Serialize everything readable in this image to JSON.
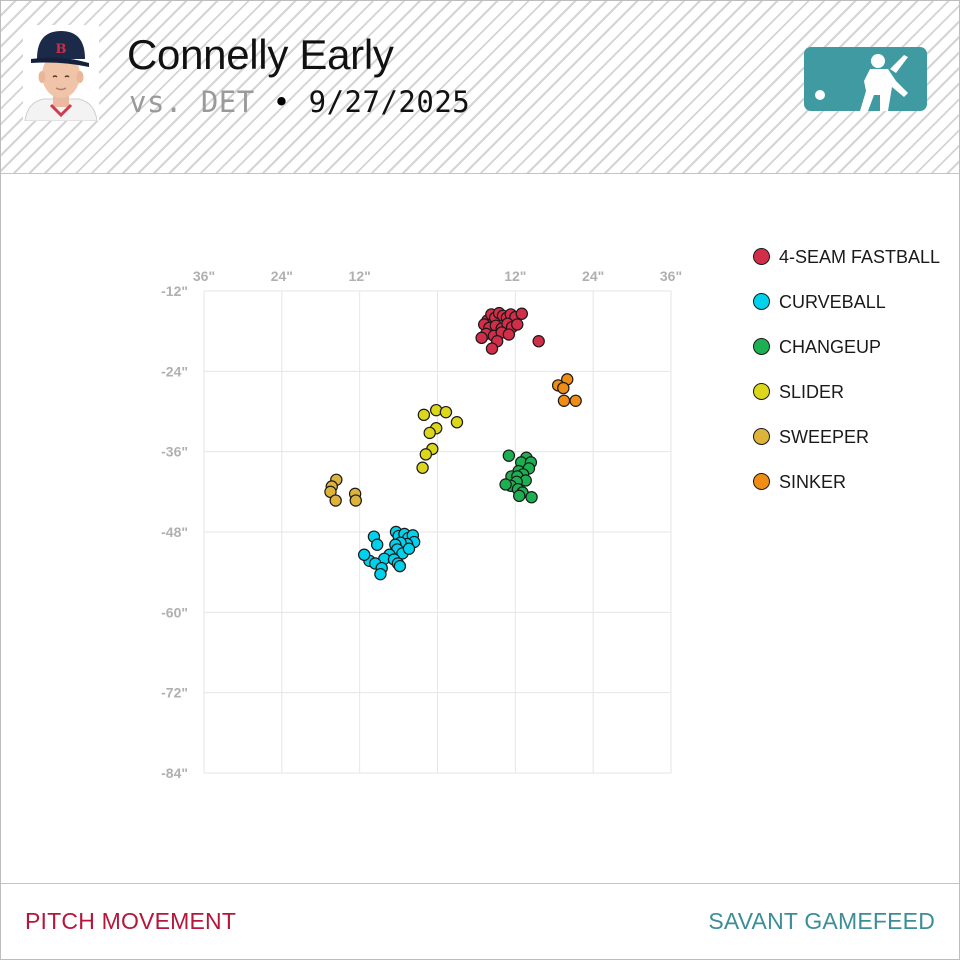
{
  "header": {
    "player_name": "Connelly Early",
    "vs_label": "vs. DET",
    "separator": "•",
    "date": "9/27/2025",
    "avatar_icon": "player-headshot-icon",
    "logo_icon": "mlb-logo-icon",
    "colors": {
      "logo": "#3f9aa2",
      "name": "#111111",
      "vs": "#9a9a9a"
    }
  },
  "footer": {
    "left_label": "PITCH MOVEMENT",
    "right_label": "SAVANT GAMEFEED",
    "left_color": "#b5163a",
    "right_color": "#3b8e98"
  },
  "chart_data": {
    "type": "scatter",
    "title": "",
    "xlabel": "",
    "ylabel": "",
    "xlim": [
      -36,
      36
    ],
    "ylim": [
      -84,
      -12
    ],
    "x_ticks": [
      -36,
      -24,
      -12,
      12,
      24,
      36
    ],
    "x_tick_labels": [
      "36\"",
      "24\"",
      "12\"",
      "12\"",
      "24\"",
      "36\""
    ],
    "y_ticks": [
      -12,
      -24,
      -36,
      -48,
      -60,
      -72,
      -84
    ],
    "y_tick_labels": [
      "-12\"",
      "-24\"",
      "-36\"",
      "-48\"",
      "-60\"",
      "-72\"",
      "-84\""
    ],
    "grid": true,
    "legend_position": "right",
    "series": [
      {
        "name": "4-SEAM FASTBALL",
        "color": "#d22d49",
        "points": [
          [
            7.7,
            -16.4
          ],
          [
            8.3,
            -15.5
          ],
          [
            8.9,
            -16.0
          ],
          [
            9.5,
            -15.3
          ],
          [
            10.1,
            -15.7
          ],
          [
            10.7,
            -16.0
          ],
          [
            11.3,
            -15.5
          ],
          [
            12.0,
            -15.9
          ],
          [
            13.0,
            -15.4
          ],
          [
            7.2,
            -17.0
          ],
          [
            8.0,
            -17.5
          ],
          [
            9.0,
            -17.2
          ],
          [
            9.9,
            -17.6
          ],
          [
            10.8,
            -16.9
          ],
          [
            11.5,
            -17.4
          ],
          [
            12.3,
            -17.0
          ],
          [
            7.5,
            -18.4
          ],
          [
            8.7,
            -18.7
          ],
          [
            9.9,
            -18.2
          ],
          [
            11.0,
            -18.5
          ],
          [
            6.8,
            -19.0
          ],
          [
            9.2,
            -19.5
          ],
          [
            8.4,
            -20.6
          ],
          [
            15.6,
            -19.5
          ]
        ]
      },
      {
        "name": "CURVEBALL",
        "color": "#00d1ed",
        "points": [
          [
            -6.4,
            -48.0
          ],
          [
            -6.0,
            -48.6
          ],
          [
            -5.1,
            -48.3
          ],
          [
            -4.5,
            -48.9
          ],
          [
            -3.8,
            -48.5
          ],
          [
            -3.6,
            -49.5
          ],
          [
            -4.7,
            -49.8
          ],
          [
            -5.7,
            -49.6
          ],
          [
            -6.5,
            -49.9
          ],
          [
            -6.2,
            -50.6
          ],
          [
            -5.4,
            -51.2
          ],
          [
            -4.4,
            -50.5
          ],
          [
            -7.4,
            -51.4
          ],
          [
            -8.2,
            -52.0
          ],
          [
            -9.8,
            -48.7
          ],
          [
            -9.3,
            -49.9
          ],
          [
            -10.5,
            -52.3
          ],
          [
            -9.6,
            -52.7
          ],
          [
            -8.6,
            -53.4
          ],
          [
            -6.7,
            -52.1
          ],
          [
            -6.1,
            -52.7
          ],
          [
            -5.8,
            -53.1
          ],
          [
            -8.8,
            -54.3
          ],
          [
            -11.3,
            -51.4
          ]
        ]
      },
      {
        "name": "CHANGEUP",
        "color": "#1db053",
        "points": [
          [
            11.0,
            -36.6
          ],
          [
            13.7,
            -36.9
          ],
          [
            12.9,
            -37.6
          ],
          [
            14.4,
            -37.6
          ],
          [
            14.1,
            -38.5
          ],
          [
            12.5,
            -38.9
          ],
          [
            11.4,
            -39.7
          ],
          [
            13.2,
            -39.4
          ],
          [
            12.3,
            -39.7
          ],
          [
            13.6,
            -40.3
          ],
          [
            12.2,
            -40.5
          ],
          [
            11.3,
            -41.1
          ],
          [
            10.5,
            -40.9
          ],
          [
            12.4,
            -41.6
          ],
          [
            13.1,
            -42.1
          ],
          [
            12.6,
            -42.6
          ],
          [
            14.5,
            -42.8
          ]
        ]
      },
      {
        "name": "SLIDER",
        "color": "#ddd71c",
        "points": [
          [
            -0.2,
            -29.8
          ],
          [
            -2.1,
            -30.5
          ],
          [
            1.3,
            -30.1
          ],
          [
            3.0,
            -31.6
          ],
          [
            -0.2,
            -32.5
          ],
          [
            -1.2,
            -33.2
          ],
          [
            -0.8,
            -35.6
          ],
          [
            -1.8,
            -36.4
          ],
          [
            -2.3,
            -38.4
          ]
        ]
      },
      {
        "name": "SWEEPER",
        "color": "#ddb33a",
        "points": [
          [
            -15.6,
            -40.2
          ],
          [
            -16.3,
            -41.2
          ],
          [
            -16.5,
            -42.0
          ],
          [
            -15.7,
            -43.3
          ],
          [
            -12.7,
            -42.3
          ],
          [
            -12.6,
            -43.3
          ]
        ]
      },
      {
        "name": "SINKER",
        "color": "#ef8d15",
        "points": [
          [
            20.0,
            -25.2
          ],
          [
            18.6,
            -26.1
          ],
          [
            19.4,
            -26.5
          ],
          [
            19.5,
            -28.4
          ],
          [
            21.3,
            -28.4
          ]
        ]
      }
    ]
  }
}
